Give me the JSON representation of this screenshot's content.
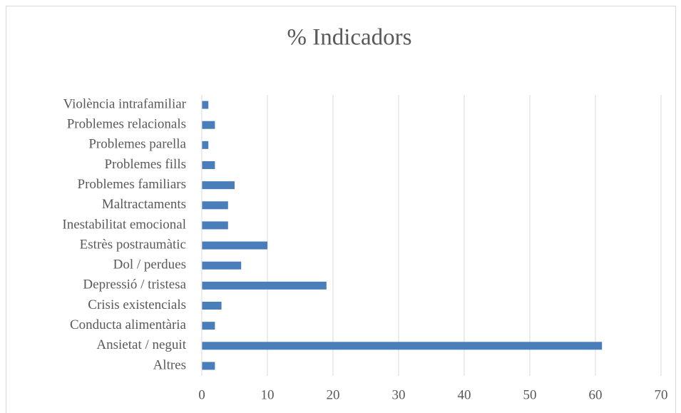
{
  "chart_data": {
    "type": "bar",
    "orientation": "horizontal",
    "title": "% Indicadors",
    "categories": [
      "Altres",
      "Ansietat / neguit",
      "Conducta alimentària",
      "Crisis existencials",
      "Depressió / tristesa",
      "Dol / perdues",
      "Estrès postraumàtic",
      "Inestabilitat emocional",
      "Maltractaments",
      "Problemes familiars",
      "Problemes fills",
      "Problemes parella",
      "Problemes relacionals",
      "Violència intrafamiliar"
    ],
    "values": [
      2,
      61,
      2,
      3,
      19,
      6,
      10,
      4,
      4,
      5,
      2,
      1,
      2,
      1
    ],
    "color": "#4a7ebb",
    "xlim": [
      0,
      70
    ],
    "xticks": [
      0,
      10,
      20,
      30,
      40,
      50,
      60,
      70
    ],
    "grid": true
  }
}
